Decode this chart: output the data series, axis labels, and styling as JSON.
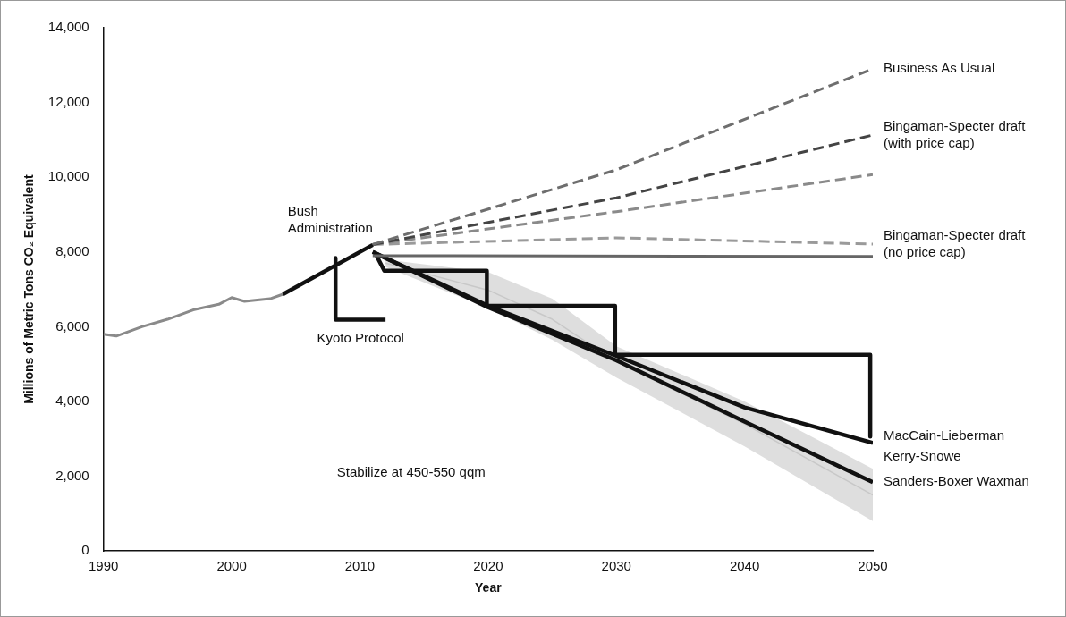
{
  "chart_data": {
    "type": "line",
    "xlabel": "Year",
    "ylabel": "Millions of Metric Tons CO₂ Equivalent",
    "xlim": [
      1990,
      2050
    ],
    "xticks": [
      1990,
      2000,
      2010,
      2020,
      2030,
      2040,
      2050
    ],
    "ylim": [
      0,
      14000
    ],
    "yticks": [
      {
        "value": 0,
        "label": "0"
      },
      {
        "value": 2000,
        "label": "2,000"
      },
      {
        "value": 4000,
        "label": "4,000"
      },
      {
        "value": 6000,
        "label": "6,000"
      },
      {
        "value": 8000,
        "label": "8,000"
      },
      {
        "value": 10000,
        "label": "10,000"
      },
      {
        "value": 12000,
        "label": "12,000"
      },
      {
        "value": 14000,
        "label": "14,000"
      }
    ],
    "grid": false,
    "legend": false,
    "marker": "none",
    "annotations": [
      "Stabilize at 450-550 qqm"
    ],
    "series": [
      {
        "color": "#c8c8c8",
        "x": [
          2012,
          2020,
          2025,
          2030,
          2040,
          2050
        ],
        "values": [
          7700,
          6980,
          6200,
          5060,
          3400,
          1500
        ],
        "lower": [
          7600,
          6500,
          5650,
          4640,
          2800,
          800
        ],
        "upper": [
          7800,
          7460,
          6750,
          5480,
          4000,
          2200
        ]
      },
      {
        "color": "#8a8a8a",
        "x": [
          1990,
          1991,
          1993,
          1995,
          1997,
          1999,
          2000,
          2001,
          2003,
          2004
        ],
        "values": [
          5800,
          5750,
          6000,
          6200,
          6450,
          6600,
          6780,
          6680,
          6750,
          6870
        ]
      },
      {
        "name": "Bush Administration",
        "color": "#111111",
        "x": [
          2004,
          2011
        ],
        "values": [
          6870,
          8190
        ]
      },
      {
        "name": "Kyoto Protocol",
        "color": "#111111",
        "x": [
          2008.1,
          2008.1,
          2012
        ],
        "values": [
          7840,
          6190,
          6190
        ]
      },
      {
        "name": "Business As Usual",
        "color": "#6e6e6e",
        "line_style": "dashed",
        "x": [
          2011,
          2030,
          2050
        ],
        "values": [
          8200,
          10200,
          12900
        ]
      },
      {
        "name": "Bingaman-Specter draft (with price cap)",
        "color": "#444444",
        "line_style": "dashed",
        "x": [
          2011,
          2030,
          2050
        ],
        "values": [
          8200,
          9450,
          11130
        ]
      },
      {
        "color": "#8a8a8a",
        "line_style": "dashed",
        "x": [
          2011,
          2030,
          2050
        ],
        "values": [
          8200,
          9080,
          10070
        ]
      },
      {
        "name": "Bingaman-Specter draft (no price cap)",
        "color": "#9a9a9a",
        "line_style": "dashed",
        "x": [
          2011,
          2030,
          2050
        ],
        "values": [
          8200,
          8380,
          8210
        ]
      },
      {
        "color": "#666666",
        "x": [
          2011,
          2050
        ],
        "values": [
          7900,
          7880
        ]
      },
      {
        "name": "MacCain-Lieberman",
        "color": "#111111",
        "x": [
          2011.3,
          2011.9,
          2019.9,
          2019.9,
          2029.9,
          2029.9,
          2049.8,
          2049.8
        ],
        "values": [
          7900,
          7500,
          7500,
          6560,
          6560,
          5250,
          5250,
          3060
        ]
      },
      {
        "name": "Kerry-Snowe",
        "color": "#111111",
        "x": [
          2011,
          2020,
          2030,
          2040,
          2050
        ],
        "values": [
          8000,
          6560,
          5220,
          3840,
          2890
        ]
      },
      {
        "name": "Sanders-Boxer Waxman",
        "color": "#111111",
        "x": [
          2011,
          2020,
          2030,
          2040,
          2050
        ],
        "values": [
          8000,
          6520,
          5100,
          3460,
          1840
        ]
      }
    ]
  }
}
